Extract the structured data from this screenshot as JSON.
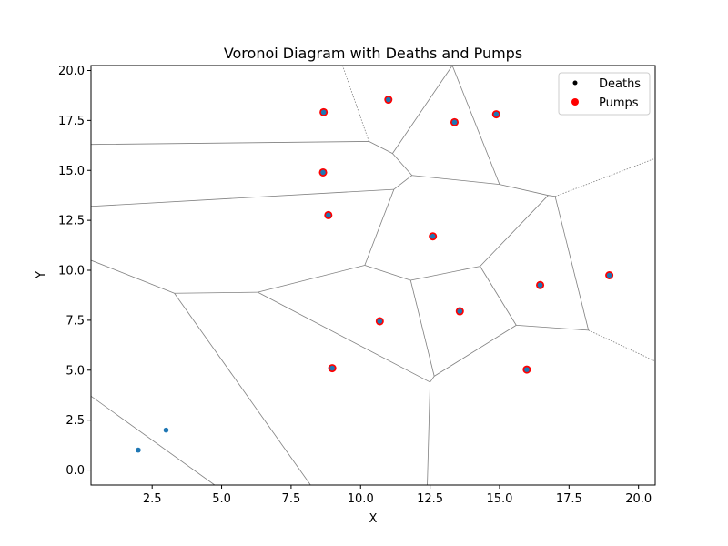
{
  "chart_data": {
    "type": "scatter",
    "title": "Voronoi Diagram with Deaths and Pumps",
    "xlabel": "X",
    "ylabel": "Y",
    "xlim": [
      0.3,
      20.6
    ],
    "ylim": [
      -0.75,
      20.25
    ],
    "xticks": [
      2.5,
      5.0,
      7.5,
      10.0,
      12.5,
      15.0,
      17.5,
      20.0
    ],
    "xtick_labels": [
      "2.5",
      "5.0",
      "7.5",
      "10.0",
      "12.5",
      "15.0",
      "17.5",
      "20.0"
    ],
    "yticks": [
      0.0,
      2.5,
      5.0,
      7.5,
      10.0,
      12.5,
      15.0,
      17.5,
      20.0
    ],
    "ytick_labels": [
      "0.0",
      "2.5",
      "5.0",
      "7.5",
      "10.0",
      "12.5",
      "15.0",
      "17.5",
      "20.0"
    ],
    "grid": false,
    "legend_position": "top-right",
    "series": [
      {
        "name": "Deaths",
        "legend_color": "#000000",
        "color": "#1f77b4",
        "points": [
          [
            2.0,
            1.0
          ],
          [
            3.0,
            2.0
          ],
          [
            8.67,
            17.91
          ],
          [
            11.0,
            18.54
          ],
          [
            13.38,
            17.41
          ],
          [
            14.88,
            17.81
          ],
          [
            8.65,
            14.9
          ],
          [
            8.84,
            12.76
          ],
          [
            12.6,
            11.7
          ],
          [
            16.46,
            9.26
          ],
          [
            18.95,
            9.75
          ],
          [
            10.69,
            7.45
          ],
          [
            13.57,
            7.95
          ],
          [
            8.98,
            5.1
          ],
          [
            15.98,
            5.03
          ]
        ]
      },
      {
        "name": "Pumps",
        "color": "#ff0000",
        "points": [
          [
            8.67,
            17.91
          ],
          [
            11.0,
            18.54
          ],
          [
            13.38,
            17.41
          ],
          [
            14.88,
            17.81
          ],
          [
            8.65,
            14.9
          ],
          [
            8.84,
            12.76
          ],
          [
            12.6,
            11.7
          ],
          [
            16.46,
            9.26
          ],
          [
            18.95,
            9.75
          ],
          [
            10.69,
            7.45
          ],
          [
            13.57,
            7.95
          ],
          [
            8.98,
            5.1
          ],
          [
            15.98,
            5.03
          ]
        ]
      }
    ],
    "voronoi": {
      "color": "#808080",
      "finite_edges": [
        [
          [
            0.3,
            16.3
          ],
          [
            10.3,
            16.45
          ]
        ],
        [
          [
            10.3,
            16.45
          ],
          [
            11.15,
            15.85
          ]
        ],
        [
          [
            11.15,
            15.85
          ],
          [
            11.85,
            14.75
          ]
        ],
        [
          [
            0.3,
            13.2
          ],
          [
            11.2,
            14.05
          ]
        ],
        [
          [
            11.2,
            14.05
          ],
          [
            11.85,
            14.75
          ]
        ],
        [
          [
            11.85,
            14.75
          ],
          [
            15.0,
            14.3
          ]
        ],
        [
          [
            15.0,
            14.3
          ],
          [
            16.75,
            13.75
          ]
        ],
        [
          [
            13.3,
            20.25
          ],
          [
            11.15,
            15.85
          ]
        ],
        [
          [
            13.3,
            20.25
          ],
          [
            15.0,
            14.3
          ]
        ],
        [
          [
            11.2,
            14.05
          ],
          [
            10.15,
            10.25
          ]
        ],
        [
          [
            10.15,
            10.25
          ],
          [
            11.8,
            9.5
          ]
        ],
        [
          [
            11.8,
            9.5
          ],
          [
            14.3,
            10.2
          ]
        ],
        [
          [
            14.3,
            10.2
          ],
          [
            16.75,
            13.75
          ]
        ],
        [
          [
            16.75,
            13.75
          ],
          [
            17.0,
            13.7
          ]
        ],
        [
          [
            17.0,
            13.7
          ],
          [
            18.2,
            7.0
          ]
        ],
        [
          [
            18.2,
            7.0
          ],
          [
            15.6,
            7.25
          ]
        ],
        [
          [
            15.6,
            7.25
          ],
          [
            14.3,
            10.2
          ]
        ],
        [
          [
            15.6,
            7.25
          ],
          [
            12.65,
            4.7
          ]
        ],
        [
          [
            12.65,
            4.7
          ],
          [
            11.8,
            9.5
          ]
        ],
        [
          [
            12.65,
            4.7
          ],
          [
            12.5,
            4.4
          ]
        ],
        [
          [
            12.5,
            4.4
          ],
          [
            12.4,
            -0.75
          ]
        ],
        [
          [
            12.5,
            4.4
          ],
          [
            6.3,
            8.9
          ]
        ],
        [
          [
            6.3,
            8.9
          ],
          [
            10.15,
            10.25
          ]
        ],
        [
          [
            6.3,
            8.9
          ],
          [
            3.3,
            8.85
          ]
        ],
        [
          [
            3.3,
            8.85
          ],
          [
            0.3,
            10.5
          ]
        ],
        [
          [
            3.3,
            8.85
          ],
          [
            8.2,
            -0.75
          ]
        ],
        [
          [
            0.3,
            3.7
          ],
          [
            4.75,
            -0.75
          ]
        ]
      ],
      "infinite_edges": [
        [
          [
            10.3,
            16.45
          ],
          [
            9.35,
            20.25
          ]
        ],
        [
          [
            17.0,
            13.7
          ],
          [
            20.6,
            15.6
          ]
        ],
        [
          [
            18.2,
            7.0
          ],
          [
            20.6,
            5.45
          ]
        ]
      ]
    }
  }
}
